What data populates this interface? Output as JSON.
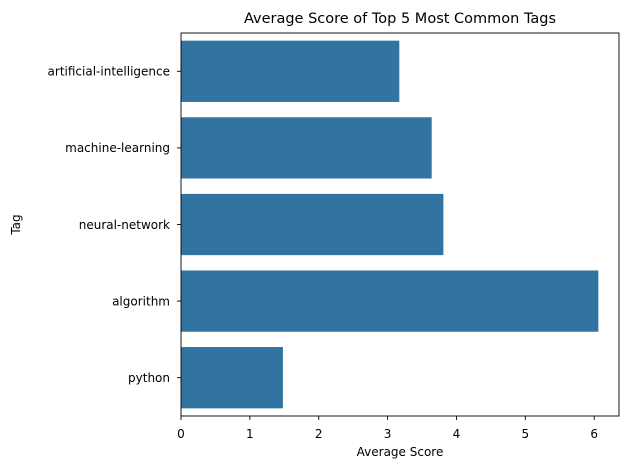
{
  "chart_data": {
    "type": "bar",
    "orientation": "horizontal",
    "title": "Average Score of Top 5 Most Common Tags",
    "xlabel": "Average Score",
    "ylabel": "Tag",
    "categories": [
      "artificial-intelligence",
      "machine-learning",
      "neural-network",
      "algorithm",
      "python"
    ],
    "values": [
      3.17,
      3.64,
      3.81,
      6.06,
      1.48
    ],
    "xlim": [
      0,
      6.36
    ],
    "xticks": [
      0,
      1,
      2,
      3,
      4,
      5,
      6
    ],
    "grid": false,
    "legend": "none",
    "bar_color": "#3274a1"
  }
}
